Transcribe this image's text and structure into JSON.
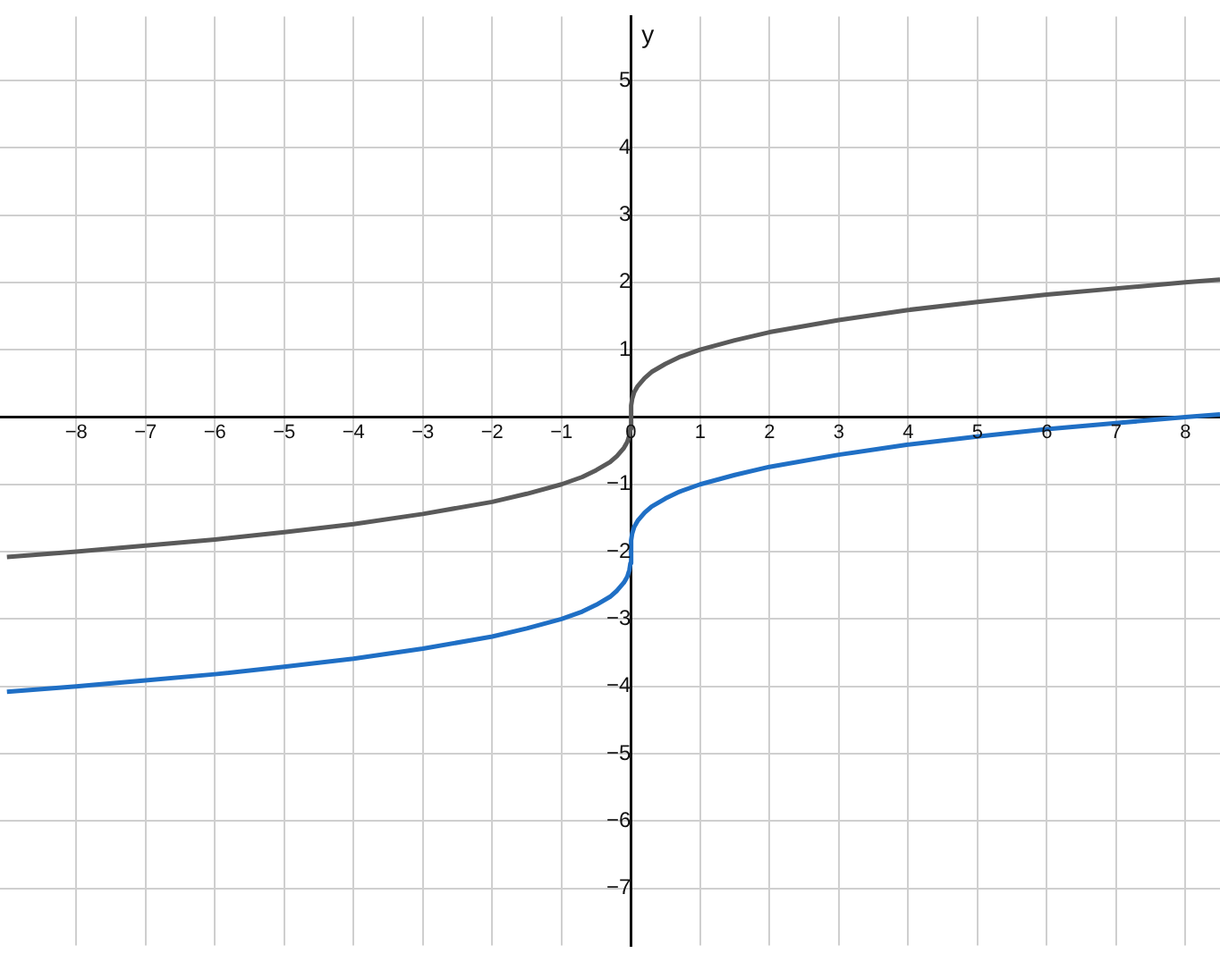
{
  "chart_data": {
    "type": "line",
    "ylabel": "y",
    "xlim": [
      -9.1,
      8.5
    ],
    "ylim": [
      -7.85,
      5.95
    ],
    "xticks": [
      -8,
      -7,
      -6,
      -5,
      -4,
      -3,
      -2,
      -1,
      0,
      1,
      2,
      3,
      4,
      5,
      6,
      7,
      8
    ],
    "yticks": [
      -7,
      -6,
      -5,
      -4,
      -3,
      -2,
      -1,
      {
        "value": 0,
        "label": null
      },
      1,
      2,
      3,
      4,
      5
    ],
    "grid": true,
    "marker": "none",
    "line_style": "solid",
    "x": [
      -9,
      -8,
      -7,
      -6,
      -5,
      -4,
      -3,
      -2,
      -1.5,
      -1,
      -0.7,
      -0.5,
      -0.3,
      -0.2,
      -0.1,
      -0.05,
      -0.02,
      -0.005,
      0.005,
      0.02,
      0.05,
      0.1,
      0.2,
      0.3,
      0.5,
      0.7,
      1,
      1.5,
      2,
      3,
      4,
      5,
      6,
      7,
      8,
      8.5
    ],
    "series": [
      {
        "color": "#5a5a5a",
        "values": [
          -2.08,
          -2,
          -1.91,
          -1.82,
          -1.71,
          -1.59,
          -1.44,
          -1.26,
          -1.14,
          -1,
          -0.89,
          -0.79,
          -0.67,
          -0.58,
          -0.46,
          -0.37,
          -0.27,
          -0.17,
          0.17,
          0.27,
          0.37,
          0.46,
          0.58,
          0.67,
          0.79,
          0.89,
          1,
          1.14,
          1.26,
          1.44,
          1.59,
          1.71,
          1.82,
          1.91,
          2,
          2.04
        ]
      },
      {
        "color": "#1f6fc5",
        "values": [
          -4.08,
          -4,
          -3.91,
          -3.82,
          -3.71,
          -3.59,
          -3.44,
          -3.26,
          -3.14,
          -3,
          -2.89,
          -2.79,
          -2.67,
          -2.58,
          -2.46,
          -2.37,
          -2.27,
          -2.17,
          -1.83,
          -1.73,
          -1.63,
          -1.54,
          -1.42,
          -1.33,
          -1.21,
          -1.11,
          -1,
          -0.86,
          -0.74,
          -0.56,
          -0.41,
          -0.29,
          -0.18,
          -0.09,
          0,
          0.04
        ]
      }
    ]
  }
}
